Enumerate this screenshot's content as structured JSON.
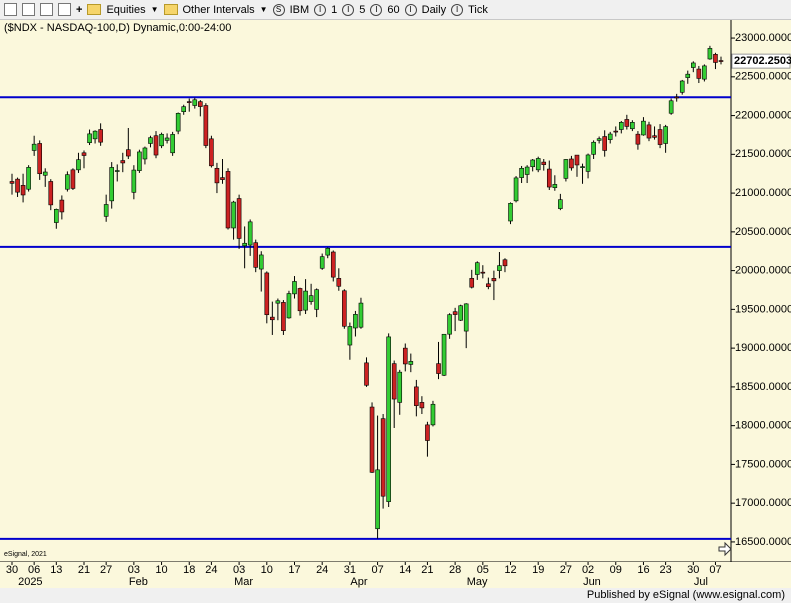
{
  "toolbar": {
    "equities": "Equities",
    "intervals": "Other Intervals",
    "symbol": "IBM",
    "i1": "1",
    "i5": "5",
    "i60": "60",
    "daily": "Daily",
    "tick": "Tick"
  },
  "footer": "Published by eSignal (www.esignal.com)",
  "chart_data": {
    "type": "candlestick",
    "title": "($NDX - NASDAQ-100,D) Dynamic,0:00-24:00",
    "watermark": "eSignal, 2021",
    "up_color": "#33cc33",
    "down_color": "#cc2222",
    "line_color": "#0000cc",
    "categories": [
      "30",
      null,
      null,
      null,
      "06",
      null,
      null,
      null,
      "13",
      null,
      null,
      null,
      null,
      "21",
      null,
      null,
      null,
      "27",
      null,
      null,
      null,
      null,
      "03",
      null,
      null,
      null,
      null,
      "10",
      null,
      null,
      null,
      null,
      "18",
      null,
      null,
      null,
      "24",
      null,
      null,
      null,
      null,
      "03",
      null,
      null,
      null,
      null,
      "10",
      null,
      null,
      null,
      null,
      "17",
      null,
      null,
      null,
      null,
      "24",
      null,
      null,
      null,
      null,
      "31",
      null,
      null,
      null,
      null,
      "07",
      null,
      null,
      null,
      null,
      "14",
      null,
      null,
      null,
      "21",
      null,
      null,
      null,
      null,
      "28",
      null,
      null,
      null,
      null,
      "05",
      null,
      null,
      null,
      null,
      "12",
      null,
      null,
      null,
      null,
      "19",
      null,
      null,
      null,
      null,
      "27",
      null,
      null,
      null,
      "02",
      null,
      null,
      null,
      null,
      "09",
      null,
      null,
      null,
      null,
      "16",
      null,
      null,
      null,
      "23",
      null,
      null,
      null,
      null,
      "30",
      null,
      null,
      null,
      "07",
      null
    ],
    "month_labels": [
      {
        "index": 2,
        "label": "2025"
      },
      {
        "index": 22,
        "label": "Feb"
      },
      {
        "index": 41,
        "label": "Mar"
      },
      {
        "index": 62,
        "label": "Apr"
      },
      {
        "index": 83,
        "label": "May"
      },
      {
        "index": 104,
        "label": "Jun"
      },
      {
        "index": 124,
        "label": "Jul"
      }
    ],
    "open": [
      21150,
      21180,
      21100,
      21050,
      21550,
      21640,
      21230,
      21150,
      20620,
      20910,
      21050,
      21300,
      21300,
      21520,
      21650,
      21700,
      21820,
      20700,
      20900,
      21280,
      21420,
      21560,
      21010,
      21290,
      21440,
      21640,
      21740,
      21610,
      21680,
      21520,
      21800,
      22050,
      22180,
      22130,
      22180,
      22130,
      21700,
      21320,
      21200,
      21280,
      20550,
      20930,
      20320,
      20330,
      20360,
      20020,
      19970,
      19400,
      19580,
      19590,
      19390,
      19700,
      19770,
      19490,
      19600,
      19500,
      20030,
      20200,
      20240,
      19900,
      19740,
      19040,
      19260,
      19270,
      18810,
      18240,
      16670,
      18090,
      17020,
      18800,
      18300,
      19000,
      18790,
      18500,
      18300,
      18010,
      18010,
      18800,
      18650,
      19180,
      19470,
      19360,
      19220,
      19900,
      19950,
      19980,
      19830,
      19900,
      20000,
      20140,
      20640,
      20900,
      21200,
      21240,
      21340,
      21300,
      21400,
      21310,
      21070,
      20800,
      21190,
      21440,
      21490,
      21330,
      21280,
      21500,
      21680,
      21730,
      21690,
      21800,
      21820,
      21950,
      21830,
      21760,
      21750,
      21880,
      21740,
      21820,
      21640,
      22030,
      22240,
      22300,
      22490,
      22620,
      22600,
      22470,
      22730,
      22790,
      22710
    ],
    "high": [
      21250,
      21200,
      21250,
      21360,
      21740,
      21680,
      21320,
      21180,
      20800,
      20970,
      21280,
      21320,
      21520,
      21550,
      21820,
      21810,
      21900,
      20980,
      21400,
      21370,
      21520,
      21840,
      21360,
      21560,
      21600,
      21740,
      21800,
      21780,
      21770,
      21790,
      22040,
      22140,
      22220,
      22230,
      22200,
      22160,
      21740,
      21390,
      21440,
      21320,
      20900,
      20980,
      20570,
      20660,
      20400,
      20250,
      19990,
      19600,
      19640,
      19620,
      19740,
      19930,
      19780,
      19890,
      19830,
      19770,
      20220,
      20300,
      20260,
      20030,
      19760,
      19330,
      19480,
      19650,
      18880,
      18300,
      18130,
      18150,
      19190,
      18840,
      18720,
      19060,
      18930,
      18590,
      18380,
      18050,
      18320,
      19080,
      19180,
      19450,
      19520,
      19560,
      19580,
      20010,
      20120,
      20070,
      19910,
      20000,
      20240,
      20160,
      20880,
      21220,
      21350,
      21360,
      21440,
      21470,
      21440,
      21420,
      21230,
      20990,
      21440,
      21480,
      21490,
      21380,
      21510,
      21680,
      21730,
      21810,
      21790,
      21860,
      21930,
      22010,
      21940,
      21800,
      21980,
      21920,
      21860,
      21890,
      21880,
      22220,
      22280,
      22460,
      22580,
      22700,
      22640,
      22660,
      22900,
      22810,
      22760
    ],
    "low": [
      20980,
      20950,
      20880,
      21020,
      21480,
      21170,
      21080,
      20780,
      20540,
      20660,
      21020,
      21040,
      21260,
      21320,
      21620,
      21640,
      21610,
      20630,
      20800,
      21150,
      21270,
      21440,
      20920,
      21260,
      21370,
      21590,
      21450,
      21580,
      21640,
      21480,
      21760,
      22010,
      22050,
      22090,
      21990,
      21580,
      21330,
      21000,
      21120,
      20530,
      20400,
      20280,
      20030,
      20190,
      19980,
      19730,
      19320,
      19170,
      19360,
      19170,
      19380,
      19640,
      19420,
      19440,
      19560,
      19400,
      20010,
      20160,
      19860,
      19740,
      19250,
      18850,
      19150,
      19250,
      18500,
      17390,
      16542,
      16930,
      16950,
      17970,
      18140,
      18700,
      18690,
      18120,
      18150,
      17600,
      17990,
      18600,
      18640,
      19120,
      19220,
      19350,
      19000,
      19770,
      19880,
      19900,
      19760,
      19620,
      19900,
      19980,
      20600,
      20880,
      21130,
      21130,
      21280,
      21270,
      21290,
      21040,
      21030,
      20780,
      21150,
      21290,
      21210,
      21120,
      21190,
      21440,
      21640,
      21470,
      21640,
      21730,
      21770,
      21820,
      21800,
      21560,
      21740,
      21670,
      21690,
      21580,
      21520,
      22010,
      22180,
      22270,
      22410,
      22560,
      22420,
      22440,
      22720,
      22600,
      22660
    ],
    "close": [
      21126,
      21012,
      20976,
      21332,
      21631,
      21250,
      21272,
      20848,
      20791,
      20757,
      21238,
      21060,
      21431,
      21485,
      21764,
      21799,
      21657,
      20853,
      21331,
      21291,
      21389,
      21478,
      21297,
      21531,
      21582,
      21715,
      21491,
      21759,
      21711,
      21757,
      22029,
      22115,
      22175,
      22204,
      22116,
      21614,
      21352,
      21132,
      21174,
      20550,
      20884,
      20415,
      20353,
      20629,
      20042,
      20202,
      19431,
      19366,
      19611,
      19225,
      19704,
      19860,
      19482,
      19736,
      19677,
      19754,
      20180,
      20288,
      19916,
      19798,
      19282,
      19279,
      19436,
      19581,
      18521,
      17398,
      17430,
      17090,
      19145,
      18343,
      18690,
      18796,
      18829,
      18258,
      18229,
      17808,
      18276,
      18672,
      19179,
      19432,
      19433,
      19547,
      19571,
      19786,
      20102,
      19973,
      19792,
      19868,
      20064,
      20062,
      20868,
      21196,
      21320,
      21336,
      21427,
      21447,
      21367,
      21078,
      21112,
      20915,
      21434,
      21325,
      21363,
      21341,
      21492,
      21656,
      21702,
      21550,
      21762,
      21796,
      21913,
      21860,
      21913,
      21631,
      21928,
      21710,
      21719,
      21626,
      21858,
      22191,
      22237,
      22446,
      22534,
      22679,
      22479,
      22641,
      22867,
      22685,
      22702.2503
    ],
    "hlines": [
      22237,
      20306,
      16540
    ],
    "ylim": [
      16241,
      23233
    ],
    "yticks": [
      {
        "value": 23000,
        "label": "23000.0000"
      },
      {
        "value": 22500,
        "label": "22500.0000"
      },
      {
        "value": 22000,
        "label": "22000.0000"
      },
      {
        "value": 21500,
        "label": "21500.0000"
      },
      {
        "value": 21000,
        "label": "21000.0000"
      },
      {
        "value": 20500,
        "label": "20500.0000"
      },
      {
        "value": 20000,
        "label": "20000.0000"
      },
      {
        "value": 19500,
        "label": "19500.0000"
      },
      {
        "value": 19000,
        "label": "19000.0000"
      },
      {
        "value": 18500,
        "label": "18500.0000"
      },
      {
        "value": 18000,
        "label": "18000.0000"
      },
      {
        "value": 17500,
        "label": "17500.0000"
      },
      {
        "value": 17000,
        "label": "17000.0000"
      },
      {
        "value": 16500,
        "label": "16500.0000"
      }
    ]
  }
}
